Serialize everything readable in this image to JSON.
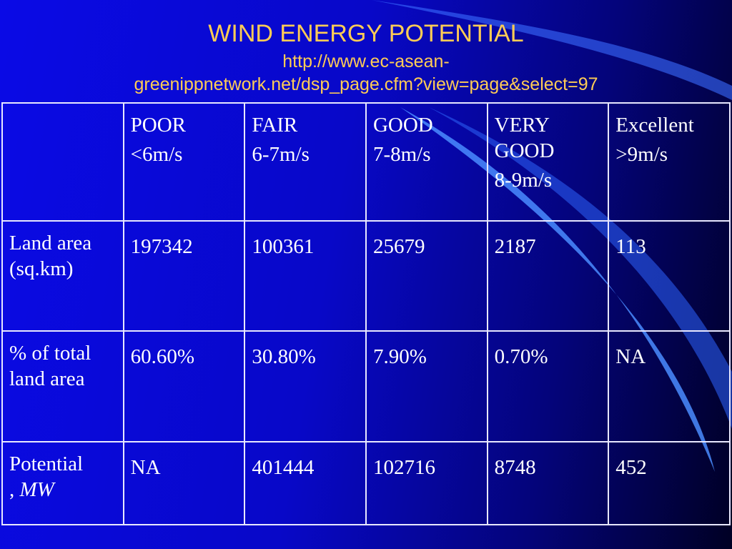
{
  "header": {
    "title": "WIND ENERGY POTENTIAL",
    "subtitle_lines": [
      "http://www.ec-asean-",
      "greenippnetwork.net/dsp_page.cfm?view=page&select=97"
    ]
  },
  "table": {
    "columns": [
      {
        "label": "POOR",
        "range": "<6m/s"
      },
      {
        "label": "FAIR",
        "range": "6-7m/s"
      },
      {
        "label": "GOOD",
        "range": "7-8m/s"
      },
      {
        "label": "VERY GOOD",
        "range": "8-9m/s"
      },
      {
        "label": "Excellent",
        "range": ">9m/s"
      }
    ],
    "rows": [
      {
        "label_parts": [
          "Land area (sq.km)"
        ],
        "cells": [
          197342,
          100361,
          25679,
          2187,
          113
        ]
      },
      {
        "label_parts": [
          "% of total land area"
        ],
        "cells": [
          "60.60%",
          "30.80%",
          "7.90%",
          "0.70%",
          "NA"
        ]
      },
      {
        "label_parts": [
          "Potential",
          ",",
          "MW"
        ],
        "cells": [
          "NA",
          401444,
          102716,
          8748,
          452
        ]
      }
    ]
  }
}
